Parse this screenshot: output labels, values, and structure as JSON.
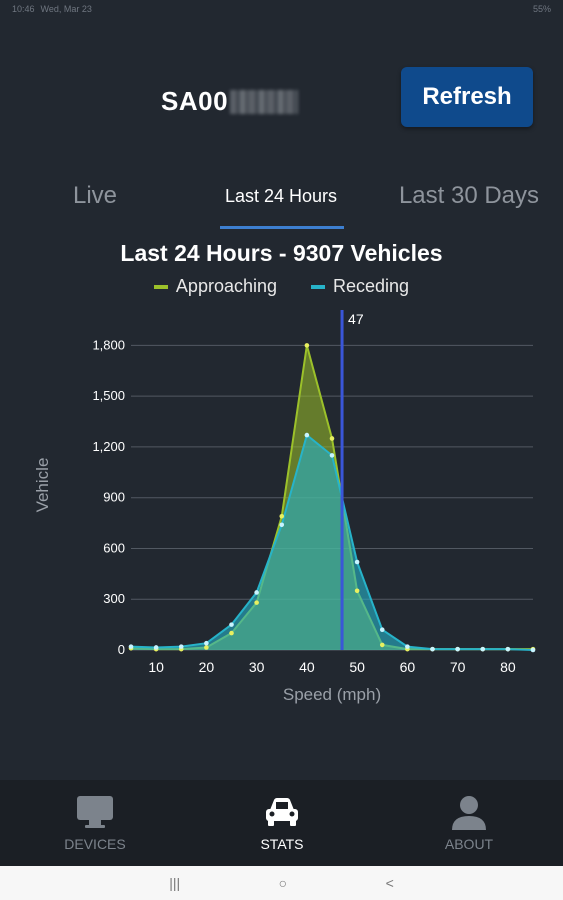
{
  "status_bar": {
    "time": "10:46",
    "date": "Wed, Mar 23",
    "battery": "55%"
  },
  "header": {
    "device_id": "SA00",
    "refresh_label": "Refresh"
  },
  "tabs": [
    {
      "label": "Live",
      "active": false
    },
    {
      "label": "Last 24 Hours",
      "active": true
    },
    {
      "label": "Last 30 Days",
      "active": false
    }
  ],
  "chart_data": {
    "type": "area",
    "title": "Last 24 Hours - 9307 Vehicles",
    "xlabel": "Speed (mph)",
    "ylabel": "Vehicle",
    "xlim": [
      5,
      85
    ],
    "ylim": [
      0,
      1950
    ],
    "x_ticks": [
      10,
      20,
      30,
      40,
      50,
      60,
      70,
      80
    ],
    "y_ticks": [
      0,
      300,
      600,
      900,
      1200,
      1500,
      1800
    ],
    "y_tick_labels": [
      "0",
      "300",
      "600",
      "900",
      "1,200",
      "1,500",
      "1,800"
    ],
    "legend_position": "top",
    "grid": "horizontal",
    "marker": {
      "x": 47,
      "label": "47"
    },
    "x": [
      5,
      10,
      15,
      20,
      25,
      30,
      35,
      40,
      45,
      50,
      55,
      60,
      65,
      70,
      75,
      80,
      85
    ],
    "series": [
      {
        "name": "Approaching",
        "color": "#9cc12a",
        "values": [
          10,
          5,
          5,
          15,
          100,
          280,
          790,
          1800,
          1250,
          350,
          30,
          5,
          5,
          5,
          5,
          5,
          5
        ]
      },
      {
        "name": "Receding",
        "color": "#27b3c9",
        "values": [
          20,
          15,
          20,
          40,
          150,
          340,
          740,
          1270,
          1150,
          520,
          120,
          20,
          5,
          5,
          5,
          5,
          0
        ]
      }
    ]
  },
  "bottom_nav": [
    {
      "label": "DEVICES",
      "icon": "monitor-icon",
      "active": false
    },
    {
      "label": "STATS",
      "icon": "car-icon",
      "active": true
    },
    {
      "label": "ABOUT",
      "icon": "person-icon",
      "active": false
    }
  ],
  "system_nav": {
    "recents": "|||",
    "home": "○",
    "back": "<"
  }
}
